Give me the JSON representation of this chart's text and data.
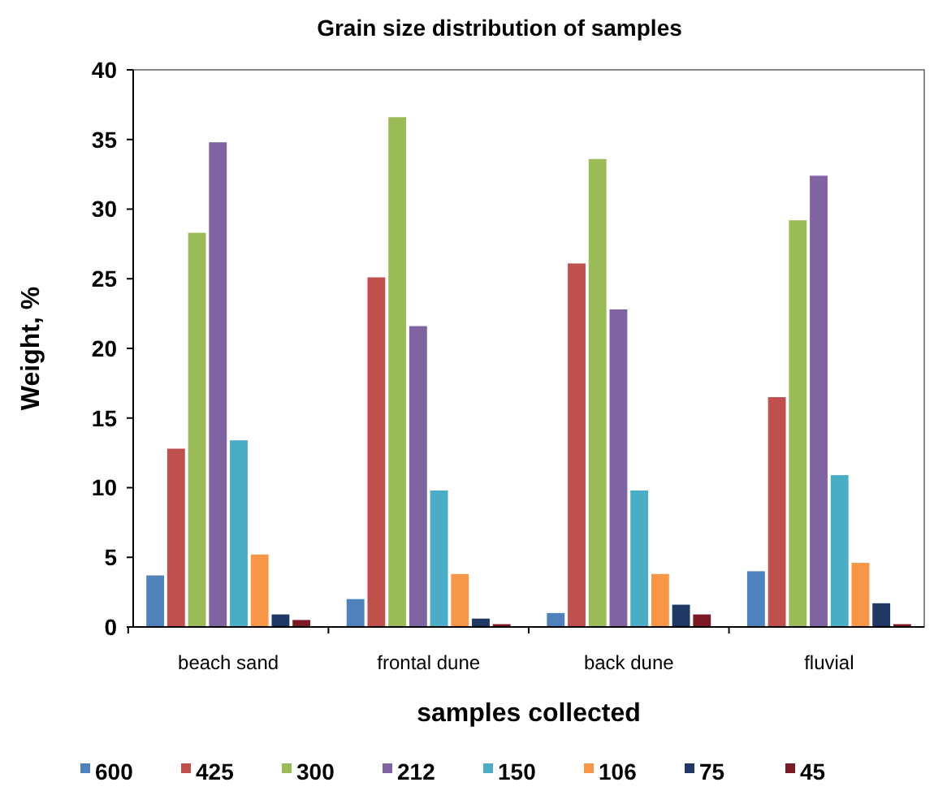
{
  "chart_data": {
    "type": "bar",
    "title": "Grain size distribution of samples",
    "xlabel": "samples collected",
    "ylabel": "Weight, %",
    "categories": [
      "beach sand",
      "frontal dune",
      "back dune",
      "fluvial"
    ],
    "series": [
      {
        "name": "600",
        "color": "#4f81bd",
        "values": [
          3.7,
          2.0,
          1.0,
          4.0
        ]
      },
      {
        "name": "425",
        "color": "#c0504d",
        "values": [
          12.8,
          25.1,
          26.1,
          16.5
        ]
      },
      {
        "name": "300",
        "color": "#9bbb59",
        "values": [
          28.3,
          36.6,
          33.6,
          29.2
        ]
      },
      {
        "name": "212",
        "color": "#8064a2",
        "values": [
          34.8,
          21.6,
          22.8,
          32.4
        ]
      },
      {
        "name": "150",
        "color": "#4bacc6",
        "values": [
          13.4,
          9.8,
          9.8,
          10.9
        ]
      },
      {
        "name": "106",
        "color": "#f79646",
        "values": [
          5.2,
          3.8,
          3.8,
          4.6
        ]
      },
      {
        "name": "75",
        "color": "#1f3864",
        "values": [
          0.9,
          0.6,
          1.6,
          1.7
        ]
      },
      {
        "name": "45",
        "color": "#7b1a24",
        "values": [
          0.5,
          0.2,
          0.9,
          0.2
        ]
      }
    ],
    "ylim": [
      0,
      40
    ],
    "yticks": [
      0,
      5,
      10,
      15,
      20,
      25,
      30,
      35,
      40
    ],
    "grid": false,
    "legend": "bottom"
  }
}
